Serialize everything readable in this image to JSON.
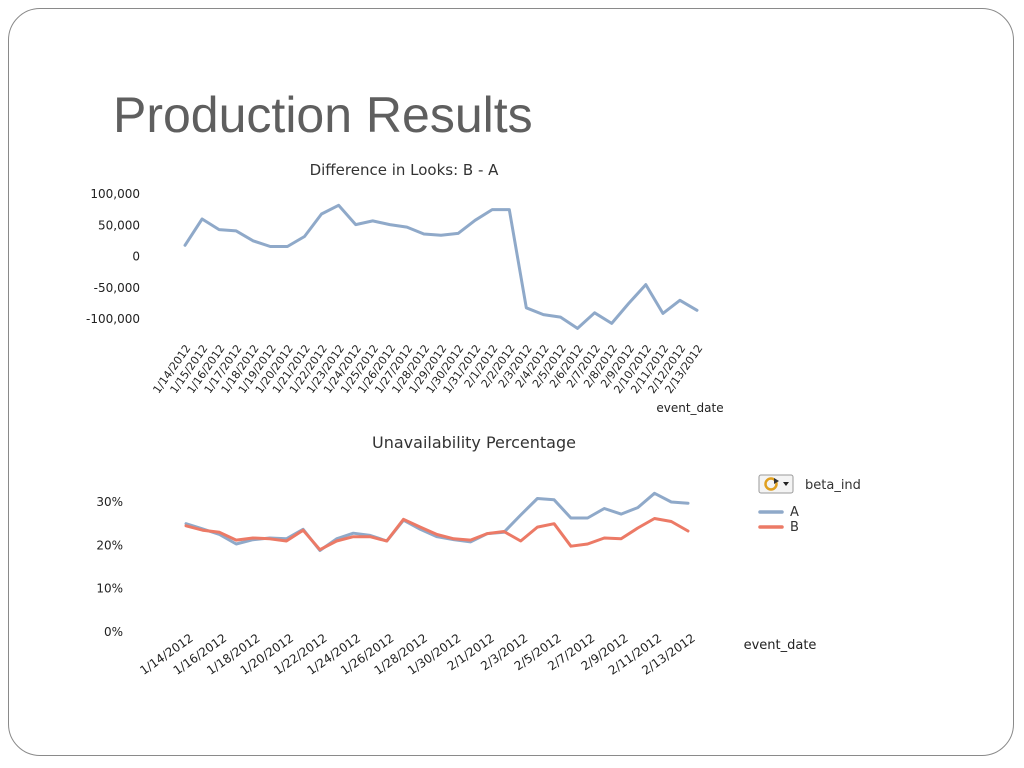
{
  "slide": {
    "title": "Production Results"
  },
  "chart_data": [
    {
      "type": "line",
      "title": "Difference in Looks: B - A",
      "xlabel": "event_date",
      "ylabel": "",
      "ylim": [
        -100000,
        100000
      ],
      "y_ticks": [
        "100,000",
        "50,000",
        "0",
        "-50,000",
        "-100,000"
      ],
      "y_tick_values": [
        100000,
        50000,
        0,
        -50000,
        -100000
      ],
      "grid": false,
      "categories": [
        "1/14/2012",
        "1/15/2012",
        "1/16/2012",
        "1/17/2012",
        "1/18/2012",
        "1/19/2012",
        "1/20/2012",
        "1/21/2012",
        "1/22/2012",
        "1/23/2012",
        "1/24/2012",
        "1/25/2012",
        "1/26/2012",
        "1/27/2012",
        "1/28/2012",
        "1/29/2012",
        "1/30/2012",
        "1/31/2012",
        "2/1/2012",
        "2/2/2012",
        "2/3/2012",
        "2/4/2012",
        "2/5/2012",
        "2/6/2012",
        "2/7/2012",
        "2/8/2012",
        "2/9/2012",
        "2/10/2012",
        "2/11/2012",
        "2/12/2012",
        "2/13/2012"
      ],
      "series": [
        {
          "color": "#8fa9c9",
          "values": [
            18000,
            60000,
            43000,
            41000,
            25000,
            16000,
            16000,
            32000,
            68000,
            82000,
            51000,
            57000,
            51000,
            47000,
            36000,
            34000,
            37000,
            58000,
            75000,
            75000,
            -82000,
            -93000,
            -97000,
            -115000,
            -90000,
            -107000,
            -75000,
            -45000,
            -91000,
            -70000,
            -86000
          ]
        }
      ]
    },
    {
      "type": "line",
      "title": "Unavailability Percentage",
      "xlabel": "event_date",
      "ylabel": "",
      "ylim": [
        0,
        30
      ],
      "y_ticks": [
        "30%",
        "20%",
        "10%",
        "0%"
      ],
      "y_tick_values": [
        30,
        20,
        10,
        0
      ],
      "grid": false,
      "legend": {
        "title": "beta_ind",
        "placement": "right",
        "icon": "refresh-dropdown-icon"
      },
      "categories": [
        "1/14/2012",
        "1/15/2012",
        "1/16/2012",
        "1/17/2012",
        "1/18/2012",
        "1/19/2012",
        "1/20/2012",
        "1/21/2012",
        "1/22/2012",
        "1/23/2012",
        "1/24/2012",
        "1/25/2012",
        "1/26/2012",
        "1/27/2012",
        "1/28/2012",
        "1/29/2012",
        "1/30/2012",
        "1/31/2012",
        "2/1/2012",
        "2/2/2012",
        "2/3/2012",
        "2/4/2012",
        "2/5/2012",
        "2/6/2012",
        "2/7/2012",
        "2/8/2012",
        "2/9/2012",
        "2/10/2012",
        "2/11/2012",
        "2/12/2012",
        "2/13/2012"
      ],
      "x_tick_labels": [
        "1/14/2012",
        "1/16/2012",
        "1/18/2012",
        "1/20/2012",
        "1/22/2012",
        "1/24/2012",
        "1/26/2012",
        "1/28/2012",
        "1/30/2012",
        "2/1/2012",
        "2/3/2012",
        "2/5/2012",
        "2/7/2012",
        "2/9/2012",
        "2/11/2012",
        "2/13/2012"
      ],
      "series": [
        {
          "name": "A",
          "color": "#8fa9c9",
          "values": [
            25.0,
            23.8,
            22.5,
            20.3,
            21.3,
            21.7,
            21.5,
            23.7,
            18.8,
            21.5,
            22.8,
            22.3,
            21.0,
            25.8,
            23.7,
            22.0,
            21.3,
            20.8,
            22.7,
            23.0,
            27.0,
            30.8,
            30.5,
            26.3,
            26.3,
            28.5,
            27.2,
            28.7,
            32.0,
            30.0,
            29.7
          ]
        },
        {
          "name": "B",
          "color": "#ec7a66",
          "values": [
            24.5,
            23.5,
            23.0,
            21.2,
            21.7,
            21.5,
            21.0,
            23.5,
            19.0,
            21.0,
            22.0,
            22.0,
            21.0,
            26.0,
            24.2,
            22.5,
            21.5,
            21.2,
            22.7,
            23.2,
            21.0,
            24.2,
            25.0,
            19.8,
            20.3,
            21.7,
            21.5,
            24.0,
            26.2,
            25.5,
            23.3
          ]
        }
      ]
    }
  ]
}
